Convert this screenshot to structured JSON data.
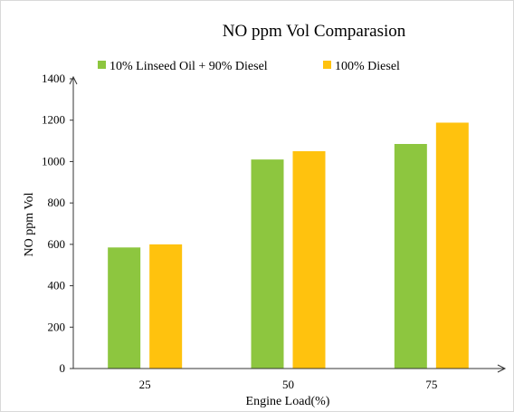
{
  "chart_data": {
    "type": "bar",
    "title": "NO ppm Vol Comparasion",
    "xlabel": "Engine Load(%)",
    "ylabel": "NO ppm Vol",
    "categories": [
      "25",
      "50",
      "75"
    ],
    "ylim": [
      0,
      1400
    ],
    "yticks": [
      0,
      200,
      400,
      600,
      800,
      1000,
      1200,
      1400
    ],
    "grid": false,
    "legend_position": "top",
    "series": [
      {
        "name": "10% Linseed Oil + 90% Diesel",
        "color": "#8dc63f",
        "values": [
          585,
          1010,
          1085
        ]
      },
      {
        "name": "100% Diesel",
        "color": "#ffc20e",
        "values": [
          600,
          1050,
          1188
        ]
      }
    ]
  }
}
